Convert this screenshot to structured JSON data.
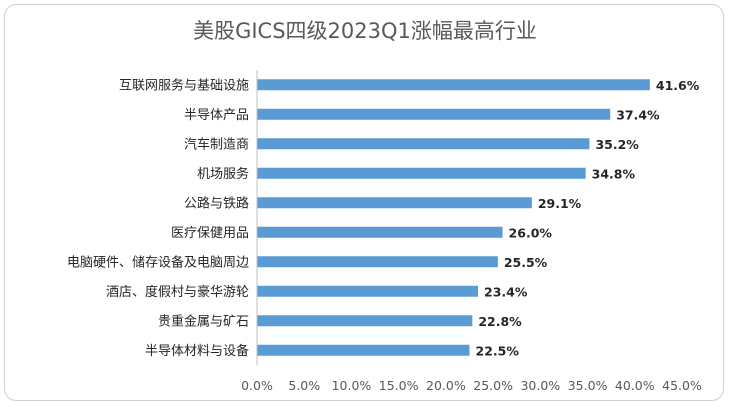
{
  "chart_data": {
    "type": "bar",
    "orientation": "horizontal",
    "title": "美股GICS四级2023Q1涨幅最高行业",
    "categories": [
      "互联网服务与基础设施",
      "半导体产品",
      "汽车制造商",
      "机场服务",
      "公路与铁路",
      "医疗保健用品",
      "电脑硬件、储存设备及电脑周边",
      "酒店、度假村与豪华游轮",
      "贵重金属与矿石",
      "半导体材料与设备"
    ],
    "values": [
      41.6,
      37.4,
      35.2,
      34.8,
      29.1,
      26.0,
      25.5,
      23.4,
      22.8,
      22.5
    ],
    "value_labels": [
      "41.6%",
      "37.4%",
      "35.2%",
      "34.8%",
      "29.1%",
      "26.0%",
      "25.5%",
      "23.4%",
      "22.8%",
      "22.5%"
    ],
    "x_ticks": [
      "0.0%",
      "5.0%",
      "10.0%",
      "15.0%",
      "20.0%",
      "25.0%",
      "30.0%",
      "35.0%",
      "40.0%",
      "45.0%"
    ],
    "xlim": [
      0,
      45
    ],
    "grid": false,
    "bar_color": "#5b9bd5"
  }
}
